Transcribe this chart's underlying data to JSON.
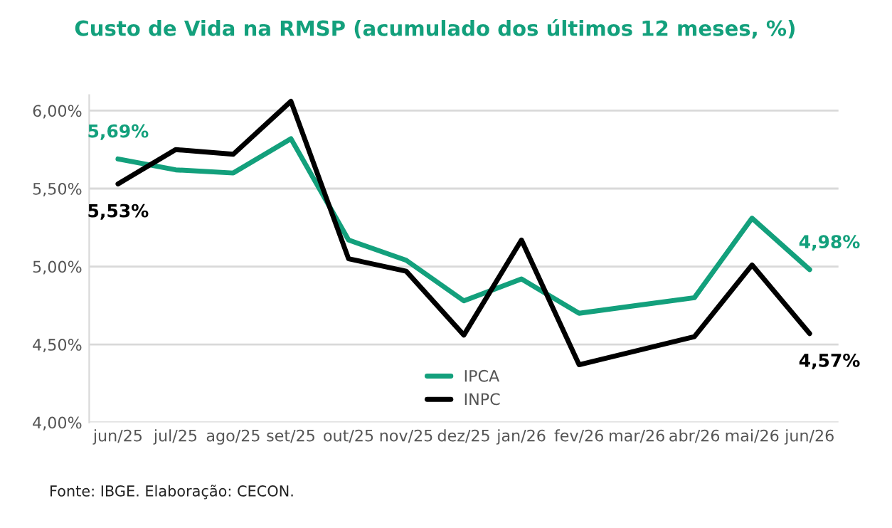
{
  "chart_data": {
    "type": "line",
    "title": "Custo de Vida na RMSP (acumulado dos últimos 12 meses, %)",
    "categories": [
      "jun/25",
      "jul/25",
      "ago/25",
      "set/25",
      "out/25",
      "nov/25",
      "dez/25",
      "jan/26",
      "fev/26",
      "mar/26",
      "abr/26",
      "mai/26",
      "jun/26"
    ],
    "series": [
      {
        "name": "IPCA",
        "color": "#13a07c",
        "values": [
          5.69,
          5.62,
          5.6,
          5.82,
          5.17,
          5.04,
          4.78,
          4.92,
          4.7,
          4.75,
          4.8,
          5.31,
          4.98
        ],
        "value_labels": [
          "5,69%",
          null,
          null,
          null,
          null,
          null,
          null,
          null,
          null,
          null,
          null,
          null,
          "4,98%"
        ]
      },
      {
        "name": "INPC",
        "color": "#000000",
        "values": [
          5.53,
          5.75,
          5.72,
          6.06,
          5.05,
          4.97,
          4.56,
          5.17,
          4.37,
          4.46,
          4.55,
          5.01,
          4.57
        ],
        "value_labels": [
          "5,53%",
          null,
          null,
          null,
          null,
          null,
          null,
          null,
          null,
          null,
          null,
          null,
          "4,57%"
        ]
      }
    ],
    "ylim": [
      4.0,
      6.1
    ],
    "yticks": [
      {
        "value": 4.0,
        "label": "4,00%"
      },
      {
        "value": 4.5,
        "label": "4,50%"
      },
      {
        "value": 5.0,
        "label": "5,00%"
      },
      {
        "value": 5.5,
        "label": "5,50%"
      },
      {
        "value": 6.0,
        "label": "6,00%"
      }
    ],
    "grid": "y",
    "legend": "bottom",
    "marker": "none",
    "line_style": "solid",
    "annotations": [
      "Fonte: IBGE. Elaboração: CECON."
    ]
  }
}
